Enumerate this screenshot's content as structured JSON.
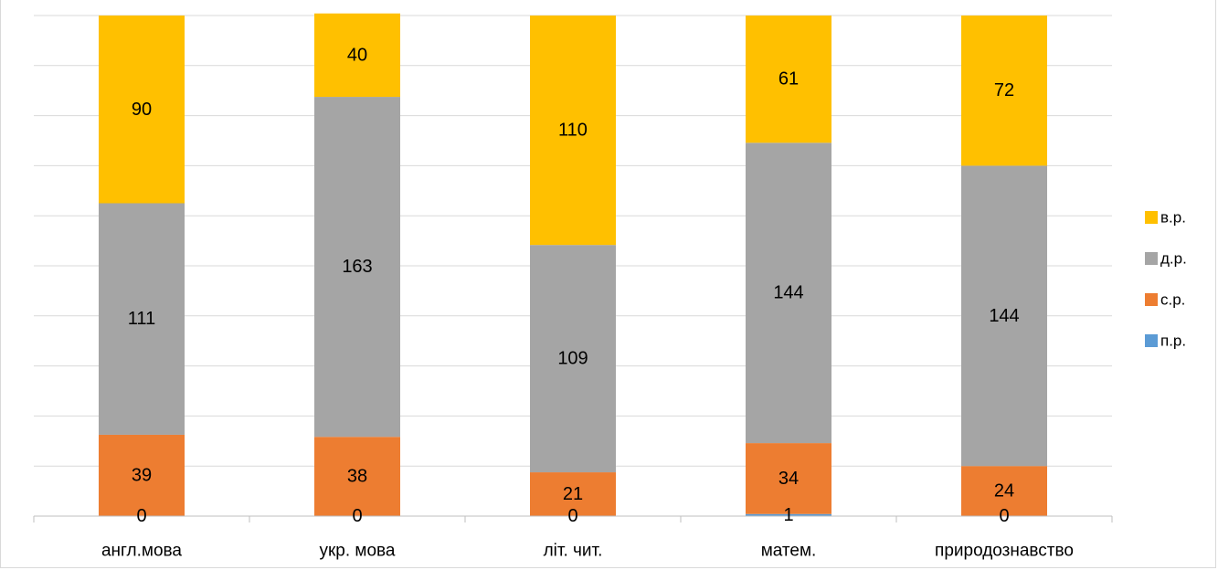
{
  "chart_data": {
    "type": "bar",
    "stacked": true,
    "categories": [
      "англ.мова",
      "укр. мова",
      "літ. чит.",
      "матем.",
      "природознавство"
    ],
    "series": [
      {
        "name": "п.р.",
        "values": [
          0,
          0,
          0,
          1,
          0
        ],
        "color": "#5B9BD5"
      },
      {
        "name": "с.р.",
        "values": [
          39,
          38,
          21,
          34,
          24
        ],
        "color": "#ED7D31"
      },
      {
        "name": "д.р.",
        "values": [
          111,
          163,
          109,
          144,
          144
        ],
        "color": "#A5A5A5"
      },
      {
        "name": "в.р.",
        "values": [
          90,
          40,
          110,
          61,
          72
        ],
        "color": "#FFC000"
      }
    ],
    "ylim": [
      0,
      240
    ],
    "y_gridlines": 10,
    "grid": true,
    "legend": "right",
    "data_labels": true,
    "title": "",
    "xlabel": "",
    "ylabel": ""
  }
}
